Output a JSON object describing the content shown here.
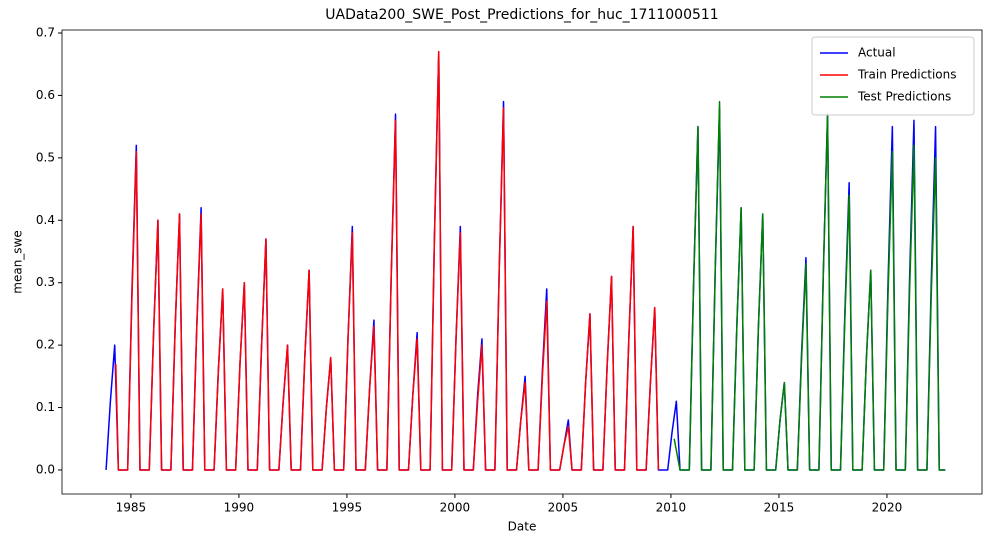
{
  "chart_data": {
    "type": "line",
    "title": "UAData200_SWE_Post_Predictions_for_huc_1711000511",
    "xlabel": "Date",
    "ylabel": "mean_swe",
    "xlim": [
      1981.81,
      2024.4
    ],
    "xticks": [
      1985,
      1990,
      1995,
      2000,
      2005,
      2010,
      2015,
      2020
    ],
    "ylim": [
      -0.0385,
      0.7048
    ],
    "yticks": [
      {
        "value": 0,
        "label": "0.0"
      },
      0.1,
      0.2,
      0.3,
      0.4,
      0.5,
      0.6,
      0.7
    ],
    "legend": "upper right",
    "grid": false,
    "series": [
      {
        "name": "Actual",
        "color": "#0000ff",
        "x": [
          1983.85,
          1984.05,
          1984.25,
          1984.42,
          1984.85,
          1985.05,
          1985.25,
          1985.42,
          1985.85,
          1986.05,
          1986.25,
          1986.42,
          1986.85,
          1987.05,
          1987.25,
          1987.42,
          1987.85,
          1988.05,
          1988.25,
          1988.42,
          1988.85,
          1989.05,
          1989.25,
          1989.42,
          1989.85,
          1990.05,
          1990.25,
          1990.42,
          1990.85,
          1991.05,
          1991.25,
          1991.42,
          1991.85,
          1992.05,
          1992.25,
          1992.42,
          1992.85,
          1993.05,
          1993.25,
          1993.42,
          1993.85,
          1994.05,
          1994.25,
          1994.42,
          1994.85,
          1995.05,
          1995.25,
          1995.42,
          1995.85,
          1996.05,
          1996.25,
          1996.42,
          1996.85,
          1997.05,
          1997.25,
          1997.42,
          1997.85,
          1998.05,
          1998.25,
          1998.42,
          1998.85,
          1999.05,
          1999.25,
          1999.42,
          1999.85,
          2000.05,
          2000.25,
          2000.42,
          2000.85,
          2001.05,
          2001.25,
          2001.42,
          2001.85,
          2002.05,
          2002.25,
          2002.42,
          2002.85,
          2003.05,
          2003.25,
          2003.42,
          2003.85,
          2004.05,
          2004.25,
          2004.42,
          2004.85,
          2005.05,
          2005.25,
          2005.42,
          2005.85,
          2006.05,
          2006.25,
          2006.42,
          2006.85,
          2007.05,
          2007.25,
          2007.42,
          2007.85,
          2008.05,
          2008.25,
          2008.42,
          2008.85,
          2009.05,
          2009.25,
          2009.42,
          2009.85,
          2010.05,
          2010.25,
          2010.42,
          2010.85,
          2011.05,
          2011.25,
          2011.42,
          2011.85,
          2012.05,
          2012.25,
          2012.42,
          2012.85,
          2013.05,
          2013.25,
          2013.42,
          2013.85,
          2014.05,
          2014.25,
          2014.42,
          2014.85,
          2015.05,
          2015.25,
          2015.42,
          2015.85,
          2016.05,
          2016.25,
          2016.42,
          2016.85,
          2017.05,
          2017.25,
          2017.42,
          2017.85,
          2018.05,
          2018.25,
          2018.42,
          2018.85,
          2019.05,
          2019.25,
          2019.42,
          2019.85,
          2020.05,
          2020.25,
          2020.42,
          2020.85,
          2021.05,
          2021.25,
          2021.42,
          2021.85,
          2022.05,
          2022.25,
          2022.42,
          2022.7
        ],
        "values": [
          0,
          0.11,
          0.2,
          0,
          0,
          0.29,
          0.52,
          0,
          0,
          0.22,
          0.4,
          0,
          0,
          0.23,
          0.41,
          0,
          0,
          0.23,
          0.42,
          0,
          0,
          0.16,
          0.29,
          0,
          0,
          0.17,
          0.3,
          0,
          0,
          0.2,
          0.37,
          0,
          0,
          0.11,
          0.2,
          0,
          0,
          0.18,
          0.32,
          0,
          0,
          0.1,
          0.18,
          0,
          0,
          0.21,
          0.39,
          0,
          0,
          0.13,
          0.24,
          0,
          0,
          0.31,
          0.57,
          0,
          0,
          0.12,
          0.22,
          0,
          0,
          0.37,
          0.67,
          0,
          0,
          0.21,
          0.39,
          0,
          0,
          0.12,
          0.21,
          0,
          0,
          0.32,
          0.59,
          0,
          0,
          0.08,
          0.15,
          0,
          0,
          0.16,
          0.29,
          0,
          0,
          0.04,
          0.08,
          0,
          0,
          0.14,
          0.25,
          0,
          0,
          0.17,
          0.31,
          0,
          0,
          0.21,
          0.39,
          0,
          0,
          0.14,
          0.26,
          0,
          0,
          0.06,
          0.11,
          0,
          0,
          0.3,
          0.55,
          0,
          0,
          0.32,
          0.58,
          0,
          0,
          0.23,
          0.42,
          0,
          0,
          0.23,
          0.41,
          0,
          0,
          0.08,
          0.14,
          0,
          0,
          0.19,
          0.34,
          0,
          0,
          0.31,
          0.57,
          0,
          0,
          0.25,
          0.46,
          0,
          0,
          0.18,
          0.32,
          0,
          0,
          0.3,
          0.55,
          0,
          0,
          0.31,
          0.56,
          0,
          0,
          0.3,
          0.55,
          0,
          0
        ]
      },
      {
        "name": "Train Predictions",
        "color": "#ff0000",
        "x": [
          1984.3,
          1984.42,
          1984.85,
          1985.05,
          1985.25,
          1985.42,
          1985.85,
          1986.05,
          1986.25,
          1986.42,
          1986.85,
          1987.05,
          1987.25,
          1987.42,
          1987.85,
          1988.05,
          1988.25,
          1988.42,
          1988.85,
          1989.05,
          1989.25,
          1989.42,
          1989.85,
          1990.05,
          1990.25,
          1990.42,
          1990.85,
          1991.05,
          1991.25,
          1991.42,
          1991.85,
          1992.05,
          1992.25,
          1992.42,
          1992.85,
          1993.05,
          1993.25,
          1993.42,
          1993.85,
          1994.05,
          1994.25,
          1994.42,
          1994.85,
          1995.05,
          1995.25,
          1995.42,
          1995.85,
          1996.05,
          1996.25,
          1996.42,
          1996.85,
          1997.05,
          1997.25,
          1997.42,
          1997.85,
          1998.05,
          1998.25,
          1998.42,
          1998.85,
          1999.05,
          1999.25,
          1999.42,
          1999.85,
          2000.05,
          2000.25,
          2000.42,
          2000.85,
          2001.05,
          2001.25,
          2001.42,
          2001.85,
          2002.05,
          2002.25,
          2002.42,
          2002.85,
          2003.05,
          2003.25,
          2003.42,
          2003.85,
          2004.05,
          2004.25,
          2004.42,
          2004.85,
          2005.05,
          2005.25,
          2005.42,
          2005.85,
          2006.05,
          2006.25,
          2006.42,
          2006.85,
          2007.05,
          2007.25,
          2007.42,
          2007.85,
          2008.05,
          2008.25,
          2008.42,
          2008.85,
          2009.05,
          2009.25,
          2009.42
        ],
        "values": [
          0.17,
          0,
          0,
          0.28,
          0.51,
          0,
          0,
          0.22,
          0.4,
          0,
          0,
          0.23,
          0.41,
          0,
          0,
          0.23,
          0.41,
          0,
          0,
          0.16,
          0.29,
          0,
          0,
          0.17,
          0.3,
          0,
          0,
          0.2,
          0.37,
          0,
          0,
          0.11,
          0.2,
          0,
          0,
          0.18,
          0.32,
          0,
          0,
          0.1,
          0.18,
          0,
          0,
          0.21,
          0.38,
          0,
          0,
          0.13,
          0.23,
          0,
          0,
          0.31,
          0.56,
          0,
          0,
          0.12,
          0.21,
          0,
          0,
          0.37,
          0.67,
          0,
          0,
          0.21,
          0.38,
          0,
          0,
          0.11,
          0.2,
          0,
          0,
          0.32,
          0.58,
          0,
          0,
          0.08,
          0.14,
          0,
          0,
          0.15,
          0.27,
          0,
          0,
          0.04,
          0.07,
          0,
          0,
          0.14,
          0.25,
          0,
          0,
          0.17,
          0.31,
          0,
          0,
          0.21,
          0.39,
          0,
          0,
          0.14,
          0.26,
          0
        ]
      },
      {
        "name": "Test Predictions",
        "color": "#008000",
        "x": [
          2010.15,
          2010.42,
          2010.85,
          2011.05,
          2011.25,
          2011.42,
          2011.85,
          2012.05,
          2012.25,
          2012.42,
          2012.85,
          2013.05,
          2013.25,
          2013.42,
          2013.85,
          2014.05,
          2014.25,
          2014.42,
          2014.85,
          2015.05,
          2015.25,
          2015.42,
          2015.85,
          2016.05,
          2016.25,
          2016.42,
          2016.85,
          2017.05,
          2017.25,
          2017.42,
          2017.85,
          2018.05,
          2018.25,
          2018.42,
          2018.85,
          2019.05,
          2019.25,
          2019.42,
          2019.85,
          2020.05,
          2020.25,
          2020.42,
          2020.85,
          2021.05,
          2021.25,
          2021.42,
          2021.85,
          2022.05,
          2022.25,
          2022.42,
          2022.7
        ],
        "values": [
          0.05,
          0,
          0,
          0.3,
          0.55,
          0,
          0,
          0.32,
          0.59,
          0,
          0,
          0.23,
          0.42,
          0,
          0,
          0.23,
          0.41,
          0,
          0,
          0.08,
          0.14,
          0,
          0,
          0.18,
          0.33,
          0,
          0,
          0.31,
          0.57,
          0,
          0,
          0.24,
          0.44,
          0,
          0,
          0.18,
          0.32,
          0,
          0,
          0.28,
          0.51,
          0,
          0,
          0.29,
          0.52,
          0,
          0,
          0.28,
          0.5,
          0,
          0
        ]
      }
    ]
  }
}
